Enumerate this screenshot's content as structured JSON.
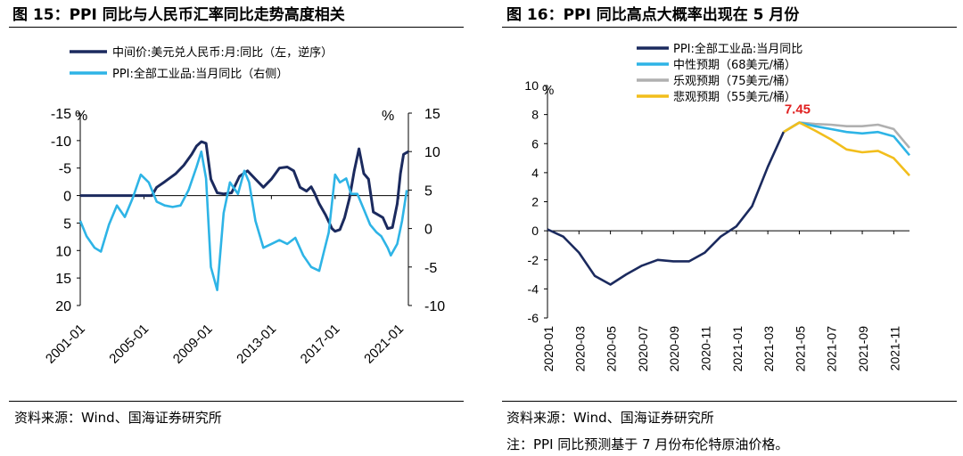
{
  "left_panel": {
    "title": "图 15：PPI 同比与人民币汇率同比走势高度相关",
    "source": "资料来源：Wind、国海证券研究所"
  },
  "right_panel": {
    "title": "图 16：PPI 同比高点大概率出现在 5 月份",
    "source": "资料来源：Wind、国海证券研究所",
    "note": "注：PPI 同比预测基于 7 月份布伦特原油价格。"
  },
  "colors": {
    "navy": "#1b2a5e",
    "light_blue": "#2eb4e6",
    "gray": "#b0b0b0",
    "yellow": "#f2be1c",
    "peak_label": "#e02020"
  },
  "chart_data": [
    {
      "type": "line",
      "legend_position": "top-left",
      "left_unit": "%",
      "right_unit": "%",
      "left_axis": {
        "reversed": true,
        "ylim": [
          -15,
          20
        ],
        "ticks": [
          "-15",
          "-10",
          "-5",
          "0",
          "5",
          "10",
          "15",
          "20"
        ]
      },
      "right_axis": {
        "ylim": [
          -10,
          15
        ],
        "ticks": [
          "15",
          "10",
          "5",
          "0",
          "-5",
          "-10"
        ]
      },
      "x_ticks": [
        "2001-01",
        "2005-01",
        "2009-01",
        "2013-01",
        "2017-01",
        "2021-01"
      ],
      "series": [
        {
          "name": "中间价:美元兑人民币:月:同比（左，逆序）",
          "axis": "left",
          "color": "#1b2a5e",
          "x": [
            2001.0,
            2004.0,
            2005.5,
            2005.8,
            2006.3,
            2007.0,
            2007.5,
            2008.0,
            2008.3,
            2008.6,
            2008.9,
            2009.2,
            2009.6,
            2010.0,
            2010.5,
            2011.0,
            2011.5,
            2012.0,
            2012.5,
            2013.0,
            2013.5,
            2014.0,
            2014.4,
            2014.8,
            2015.2,
            2015.5,
            2015.7,
            2016.0,
            2016.4,
            2016.8,
            2017.0,
            2017.3,
            2017.6,
            2017.9,
            2018.2,
            2018.5,
            2018.8,
            2019.1,
            2019.4,
            2019.7,
            2020.0,
            2020.3,
            2020.6,
            2020.9,
            2021.1,
            2021.3,
            2021.6
          ],
          "y": [
            0,
            0,
            0,
            -1.5,
            -2.5,
            -4,
            -5.5,
            -7.5,
            -9,
            -9.8,
            -9.5,
            -3,
            -0.5,
            -0.3,
            -0.5,
            -3.5,
            -4.5,
            -3,
            -1.5,
            -3,
            -5,
            -5.2,
            -4.5,
            -1.5,
            -0.8,
            -1.6,
            -0.5,
            1.5,
            3.5,
            6,
            6.5,
            6.2,
            4,
            0.5,
            -4.5,
            -8.5,
            -4,
            -3,
            3,
            3.5,
            4,
            6,
            5.8,
            1.5,
            -4,
            -7.5,
            -8
          ]
        },
        {
          "name": "PPI:全部工业品:当月同比（右侧）",
          "axis": "right",
          "color": "#2eb4e6",
          "x": [
            2001.0,
            2001.4,
            2001.9,
            2002.3,
            2002.8,
            2003.3,
            2003.8,
            2004.3,
            2004.8,
            2005.3,
            2005.8,
            2006.3,
            2006.8,
            2007.3,
            2007.8,
            2008.3,
            2008.6,
            2008.9,
            2009.2,
            2009.6,
            2010.0,
            2010.4,
            2010.9,
            2011.3,
            2011.6,
            2012.0,
            2012.5,
            2013.0,
            2013.5,
            2014.0,
            2014.5,
            2015.0,
            2015.5,
            2016.0,
            2016.3,
            2016.6,
            2017.0,
            2017.3,
            2017.7,
            2018.0,
            2018.4,
            2018.8,
            2019.2,
            2019.6,
            2019.9,
            2020.3,
            2020.5,
            2020.9,
            2021.2,
            2021.5
          ],
          "y": [
            1,
            -1,
            -2.5,
            -3,
            0.5,
            3,
            1.5,
            4,
            7,
            6,
            3.5,
            3,
            2.8,
            3,
            5,
            8,
            10,
            6.5,
            -5,
            -8,
            2,
            6,
            4.5,
            7.5,
            6,
            1,
            -2.5,
            -2,
            -1.5,
            -2,
            -1.2,
            -3.5,
            -5,
            -5.5,
            -3,
            -0.5,
            7,
            6,
            6.5,
            4.5,
            4.5,
            2.5,
            0.5,
            -0.5,
            -1,
            -2.5,
            -3.5,
            -2,
            1,
            5
          ]
        }
      ]
    },
    {
      "type": "line",
      "legend_position": "top-left",
      "y_unit": "%",
      "ylim": [
        -6,
        10
      ],
      "y_ticks": [
        "-6",
        "-4",
        "-2",
        "0",
        "2",
        "4",
        "6",
        "8",
        "10"
      ],
      "x_ticks": [
        "2020-01",
        "2020-03",
        "2020-05",
        "2020-07",
        "2020-09",
        "2020-11",
        "2021-01",
        "2021-03",
        "2021-05",
        "2021-07",
        "2021-09",
        "2021-11"
      ],
      "peak_label": "7.45",
      "peak_point": {
        "x": 16,
        "y": 7.45
      },
      "series": [
        {
          "name": "PPI:全部工业品:当月同比",
          "color": "#1b2a5e",
          "x": [
            0,
            1,
            2,
            3,
            4,
            5,
            6,
            7,
            8,
            9,
            10,
            11,
            12,
            13,
            14,
            15
          ],
          "y": [
            0.1,
            -0.4,
            -1.5,
            -3.1,
            -3.7,
            -3.0,
            -2.4,
            -2.0,
            -2.1,
            -2.1,
            -1.5,
            -0.4,
            0.3,
            1.7,
            4.4,
            6.8
          ]
        },
        {
          "name": "中性预期（68美元/桶）",
          "color": "#2eb4e6",
          "x": [
            15,
            16,
            17,
            18,
            19,
            20,
            21,
            22,
            23
          ],
          "y": [
            6.8,
            7.45,
            7.2,
            7.0,
            6.8,
            6.7,
            6.8,
            6.5,
            5.2
          ]
        },
        {
          "name": "乐观预期（75美元/桶）",
          "color": "#b0b0b0",
          "x": [
            15,
            16,
            17,
            18,
            19,
            20,
            21,
            22,
            23
          ],
          "y": [
            6.8,
            7.45,
            7.35,
            7.3,
            7.2,
            7.2,
            7.3,
            7.0,
            5.7
          ]
        },
        {
          "name": "悲观预期（55美元/桶）",
          "color": "#f2be1c",
          "x": [
            15,
            16,
            17,
            18,
            19,
            20,
            21,
            22,
            23
          ],
          "y": [
            6.8,
            7.45,
            6.9,
            6.3,
            5.6,
            5.4,
            5.5,
            5.0,
            3.8
          ]
        }
      ]
    }
  ]
}
